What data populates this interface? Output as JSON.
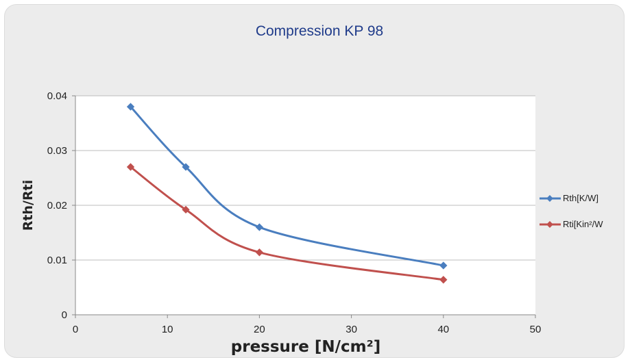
{
  "chart_data": {
    "type": "line",
    "title": "Compression KP 98",
    "xlabel": "pressure [N/cm²]",
    "ylabel": "Rth/Rti",
    "xlim": [
      0,
      50
    ],
    "ylim": [
      0,
      0.04
    ],
    "x_ticks": [
      "0",
      "10",
      "20",
      "30",
      "40",
      "50"
    ],
    "y_ticks": [
      "0",
      "0.01",
      "0.02",
      "0.03",
      "0.04"
    ],
    "grid": true,
    "legend_position": "right",
    "series": [
      {
        "name": "Rth[K/W]",
        "color": "#4a7ebf",
        "x": [
          6,
          12,
          20,
          40
        ],
        "y": [
          0.038,
          0.027,
          0.016,
          0.009
        ]
      },
      {
        "name": "Rti[Kin²/W",
        "color": "#c0504d",
        "x": [
          6,
          12,
          20,
          40
        ],
        "y": [
          0.027,
          0.0192,
          0.0114,
          0.0064
        ]
      }
    ]
  }
}
